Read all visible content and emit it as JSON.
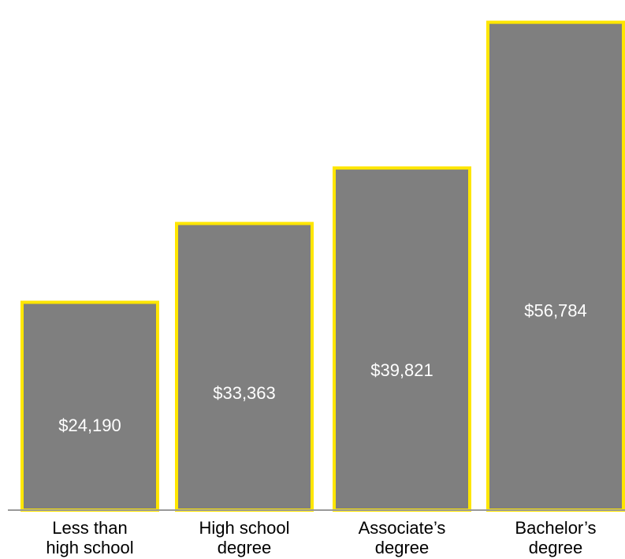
{
  "colors": {
    "bar_fill": "#7f7f7f",
    "bar_stroke": "#ffe600",
    "baseline": "#9a9a9a",
    "value_text": "#ffffff"
  },
  "chart_data": {
    "type": "bar",
    "title": "",
    "categories": [
      [
        "Less than",
        "high school"
      ],
      [
        "High school",
        "degree"
      ],
      [
        "Associate’s",
        "degree"
      ],
      [
        "Bachelor’s",
        "degree"
      ]
    ],
    "values": [
      24190,
      33363,
      39821,
      56784
    ],
    "value_labels": [
      "$24,190",
      "$33,363",
      "$39,821",
      "$56,784"
    ],
    "ylim": [
      0,
      58000
    ],
    "grid": false
  }
}
